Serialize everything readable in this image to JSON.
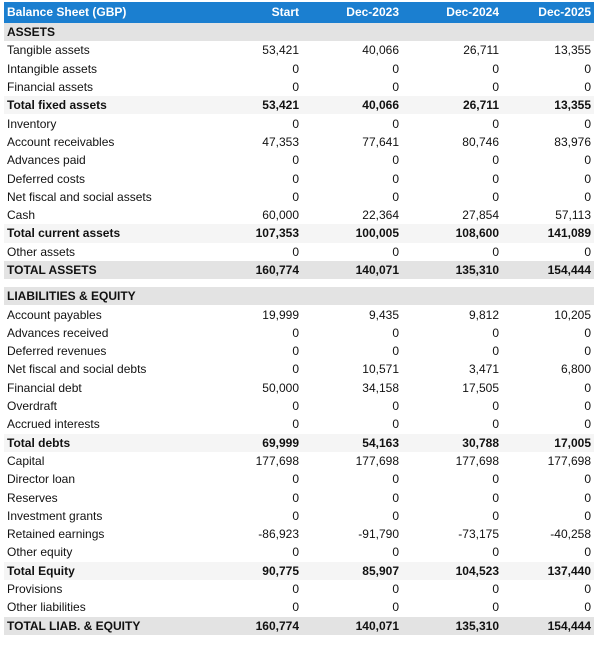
{
  "header": {
    "title": "Balance Sheet (GBP)",
    "columns": [
      "Start",
      "Dec-2023",
      "Dec-2024",
      "Dec-2025"
    ]
  },
  "assets": {
    "section": "ASSETS",
    "rows": [
      {
        "label": "Tangible assets",
        "values": [
          "53,421",
          "40,066",
          "26,711",
          "13,355"
        ],
        "type": "normal"
      },
      {
        "label": "Intangible assets",
        "values": [
          "0",
          "0",
          "0",
          "0"
        ],
        "type": "normal"
      },
      {
        "label": "Financial assets",
        "values": [
          "0",
          "0",
          "0",
          "0"
        ],
        "type": "normal"
      },
      {
        "label": "Total fixed assets",
        "values": [
          "53,421",
          "40,066",
          "26,711",
          "13,355"
        ],
        "type": "subtotal"
      },
      {
        "label": "Inventory",
        "values": [
          "0",
          "0",
          "0",
          "0"
        ],
        "type": "normal"
      },
      {
        "label": "Account receivables",
        "values": [
          "47,353",
          "77,641",
          "80,746",
          "83,976"
        ],
        "type": "normal"
      },
      {
        "label": "Advances paid",
        "values": [
          "0",
          "0",
          "0",
          "0"
        ],
        "type": "normal"
      },
      {
        "label": "Deferred costs",
        "values": [
          "0",
          "0",
          "0",
          "0"
        ],
        "type": "normal"
      },
      {
        "label": "Net fiscal and social assets",
        "values": [
          "0",
          "0",
          "0",
          "0"
        ],
        "type": "normal"
      },
      {
        "label": "Cash",
        "values": [
          "60,000",
          "22,364",
          "27,854",
          "57,113"
        ],
        "type": "normal"
      },
      {
        "label": "Total current assets",
        "values": [
          "107,353",
          "100,005",
          "108,600",
          "141,089"
        ],
        "type": "subtotal"
      },
      {
        "label": "Other assets",
        "values": [
          "0",
          "0",
          "0",
          "0"
        ],
        "type": "normal"
      },
      {
        "label": "TOTAL ASSETS",
        "values": [
          "160,774",
          "140,071",
          "135,310",
          "154,444"
        ],
        "type": "total"
      }
    ]
  },
  "liabilities": {
    "section": "LIABILITIES & EQUITY",
    "rows": [
      {
        "label": "Account payables",
        "values": [
          "19,999",
          "9,435",
          "9,812",
          "10,205"
        ],
        "type": "normal"
      },
      {
        "label": "Advances received",
        "values": [
          "0",
          "0",
          "0",
          "0"
        ],
        "type": "normal"
      },
      {
        "label": "Deferred revenues",
        "values": [
          "0",
          "0",
          "0",
          "0"
        ],
        "type": "normal"
      },
      {
        "label": "Net fiscal and social debts",
        "values": [
          "0",
          "10,571",
          "3,471",
          "6,800"
        ],
        "type": "normal"
      },
      {
        "label": "Financial debt",
        "values": [
          "50,000",
          "34,158",
          "17,505",
          "0"
        ],
        "type": "normal"
      },
      {
        "label": "Overdraft",
        "values": [
          "0",
          "0",
          "0",
          "0"
        ],
        "type": "normal"
      },
      {
        "label": "Accrued interests",
        "values": [
          "0",
          "0",
          "0",
          "0"
        ],
        "type": "normal"
      },
      {
        "label": "Total debts",
        "values": [
          "69,999",
          "54,163",
          "30,788",
          "17,005"
        ],
        "type": "subtotal"
      },
      {
        "label": "Capital",
        "values": [
          "177,698",
          "177,698",
          "177,698",
          "177,698"
        ],
        "type": "normal"
      },
      {
        "label": "Director loan",
        "values": [
          "0",
          "0",
          "0",
          "0"
        ],
        "type": "normal"
      },
      {
        "label": "Reserves",
        "values": [
          "0",
          "0",
          "0",
          "0"
        ],
        "type": "normal"
      },
      {
        "label": "Investment grants",
        "values": [
          "0",
          "0",
          "0",
          "0"
        ],
        "type": "normal"
      },
      {
        "label": "Retained earnings",
        "values": [
          "-86,923",
          "-91,790",
          "-73,175",
          "-40,258"
        ],
        "type": "normal"
      },
      {
        "label": "Other equity",
        "values": [
          "0",
          "0",
          "0",
          "0"
        ],
        "type": "normal"
      },
      {
        "label": "Total Equity",
        "values": [
          "90,775",
          "85,907",
          "104,523",
          "137,440"
        ],
        "type": "subtotal"
      },
      {
        "label": "Provisions",
        "values": [
          "0",
          "0",
          "0",
          "0"
        ],
        "type": "normal"
      },
      {
        "label": "Other liabilities",
        "values": [
          "0",
          "0",
          "0",
          "0"
        ],
        "type": "normal"
      },
      {
        "label": "TOTAL LIAB. & EQUITY",
        "values": [
          "160,774",
          "140,071",
          "135,310",
          "154,444"
        ],
        "type": "total"
      }
    ]
  }
}
